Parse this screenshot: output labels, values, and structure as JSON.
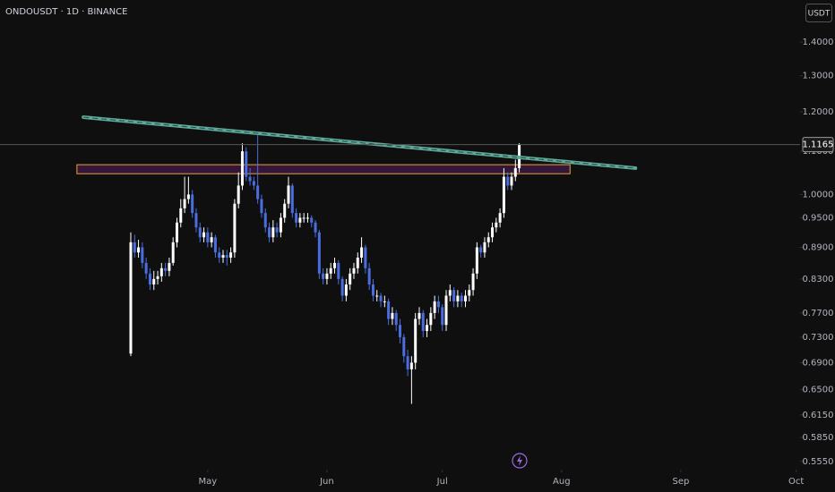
{
  "chart_data": {
    "type": "candlestick",
    "title": "ONDOUSDT · 1D · BINANCE",
    "currency": "USDT",
    "log_scale": true,
    "up_color": "#ffffff",
    "down_color": "#4a6ee0",
    "open": [
      0.704,
      0.9,
      0.88,
      0.89,
      0.86,
      0.84,
      0.82,
      0.83,
      0.835,
      0.85,
      0.845,
      0.86,
      0.9,
      0.94,
      0.97,
      0.99,
      1.0,
      0.96,
      0.93,
      0.91,
      0.92,
      0.9,
      0.91,
      0.88,
      0.87,
      0.875,
      0.87,
      0.88,
      0.98,
      1.02,
      1.1,
      1.04,
      1.03,
      1.02,
      0.99,
      0.96,
      0.93,
      0.91,
      0.93,
      0.92,
      0.95,
      0.98,
      1.02,
      0.96,
      0.94,
      0.95,
      0.95,
      0.95,
      0.94,
      0.92,
      0.84,
      0.83,
      0.84,
      0.85,
      0.86,
      0.83,
      0.8,
      0.82,
      0.84,
      0.85,
      0.87,
      0.89,
      0.85,
      0.82,
      0.8,
      0.8,
      0.79,
      0.79,
      0.76,
      0.77,
      0.75,
      0.73,
      0.7,
      0.68,
      0.69,
      0.76,
      0.77,
      0.74,
      0.75,
      0.77,
      0.79,
      0.78,
      0.75,
      0.8,
      0.81,
      0.79,
      0.8,
      0.79,
      0.8,
      0.81,
      0.84,
      0.89,
      0.88,
      0.9,
      0.91,
      0.93,
      0.94,
      0.96,
      1.04,
      1.02,
      1.04,
      1.06
    ],
    "high": [
      0.92,
      0.915,
      0.905,
      0.9,
      0.87,
      0.85,
      0.845,
      0.845,
      0.86,
      0.86,
      0.87,
      0.91,
      0.95,
      0.99,
      1.04,
      1.04,
      1.01,
      0.97,
      0.94,
      0.93,
      0.93,
      0.92,
      0.915,
      0.89,
      0.885,
      0.885,
      0.89,
      0.99,
      1.05,
      1.12,
      1.11,
      1.06,
      1.04,
      1.14,
      1.0,
      0.97,
      0.94,
      0.945,
      0.94,
      0.96,
      0.99,
      1.04,
      1.025,
      0.97,
      0.96,
      0.96,
      0.96,
      0.955,
      0.945,
      0.925,
      0.85,
      0.85,
      0.86,
      0.87,
      0.865,
      0.835,
      0.83,
      0.85,
      0.86,
      0.88,
      0.91,
      0.895,
      0.86,
      0.83,
      0.81,
      0.805,
      0.8,
      0.795,
      0.78,
      0.775,
      0.76,
      0.735,
      0.71,
      0.7,
      0.77,
      0.78,
      0.775,
      0.76,
      0.78,
      0.8,
      0.8,
      0.785,
      0.81,
      0.82,
      0.815,
      0.81,
      0.805,
      0.81,
      0.82,
      0.85,
      0.9,
      0.895,
      0.91,
      0.92,
      0.94,
      0.95,
      0.97,
      1.06,
      1.05,
      1.05,
      1.08,
      1.12
    ],
    "low": [
      0.7,
      0.87,
      0.87,
      0.85,
      0.83,
      0.81,
      0.81,
      0.82,
      0.825,
      0.835,
      0.835,
      0.855,
      0.89,
      0.93,
      0.96,
      0.98,
      0.95,
      0.92,
      0.9,
      0.9,
      0.89,
      0.89,
      0.87,
      0.86,
      0.86,
      0.855,
      0.86,
      0.87,
      0.97,
      1.01,
      1.03,
      1.02,
      1.01,
      0.98,
      0.95,
      0.92,
      0.9,
      0.9,
      0.91,
      0.91,
      0.94,
      0.97,
      0.95,
      0.93,
      0.93,
      0.94,
      0.94,
      0.93,
      0.91,
      0.83,
      0.82,
      0.82,
      0.83,
      0.84,
      0.82,
      0.79,
      0.79,
      0.81,
      0.83,
      0.84,
      0.86,
      0.84,
      0.81,
      0.79,
      0.79,
      0.78,
      0.78,
      0.75,
      0.75,
      0.74,
      0.72,
      0.69,
      0.67,
      0.63,
      0.68,
      0.75,
      0.73,
      0.73,
      0.74,
      0.76,
      0.77,
      0.74,
      0.74,
      0.79,
      0.78,
      0.78,
      0.78,
      0.78,
      0.79,
      0.8,
      0.83,
      0.87,
      0.87,
      0.89,
      0.9,
      0.92,
      0.93,
      0.95,
      1.01,
      1.01,
      1.03,
      1.05
    ],
    "close": [
      0.9,
      0.88,
      0.89,
      0.86,
      0.84,
      0.82,
      0.83,
      0.835,
      0.85,
      0.845,
      0.86,
      0.9,
      0.94,
      0.97,
      0.99,
      1.0,
      0.96,
      0.93,
      0.91,
      0.92,
      0.9,
      0.91,
      0.88,
      0.87,
      0.875,
      0.87,
      0.88,
      0.98,
      1.02,
      1.1,
      1.04,
      1.03,
      1.02,
      0.99,
      0.96,
      0.93,
      0.91,
      0.93,
      0.92,
      0.95,
      0.98,
      1.02,
      0.96,
      0.94,
      0.95,
      0.95,
      0.95,
      0.94,
      0.92,
      0.84,
      0.83,
      0.84,
      0.85,
      0.86,
      0.83,
      0.8,
      0.82,
      0.84,
      0.85,
      0.87,
      0.89,
      0.85,
      0.82,
      0.8,
      0.8,
      0.79,
      0.79,
      0.76,
      0.77,
      0.75,
      0.73,
      0.7,
      0.68,
      0.69,
      0.76,
      0.77,
      0.74,
      0.75,
      0.77,
      0.79,
      0.78,
      0.75,
      0.8,
      0.81,
      0.79,
      0.8,
      0.79,
      0.8,
      0.81,
      0.84,
      0.89,
      0.88,
      0.9,
      0.91,
      0.93,
      0.94,
      0.96,
      1.04,
      1.02,
      1.04,
      1.06,
      1.1165
    ],
    "last_price": 1.1165,
    "xlim": [
      -34,
      174
    ],
    "xticks": [
      {
        "value": 20,
        "label": "May"
      },
      {
        "value": 51,
        "label": "Jun"
      },
      {
        "value": 81,
        "label": "Jul"
      },
      {
        "value": 112,
        "label": "Aug"
      },
      {
        "value": 143,
        "label": "Sep"
      },
      {
        "value": 173,
        "label": "Oct"
      }
    ],
    "ylim": [
      0.545,
      1.536
    ],
    "yticks": [
      {
        "value": 1.4,
        "label": "1.4000"
      },
      {
        "value": 1.3,
        "label": "1.3000"
      },
      {
        "value": 1.2,
        "label": "1.2000"
      },
      {
        "value": 1.1,
        "label": "1.1000"
      },
      {
        "value": 1.0,
        "label": "1.0000"
      },
      {
        "value": 0.95,
        "label": "0.9500"
      },
      {
        "value": 0.89,
        "label": "0.8900"
      },
      {
        "value": 0.83,
        "label": "0.8300"
      },
      {
        "value": 0.77,
        "label": "0.7700"
      },
      {
        "value": 0.73,
        "label": "0.7300"
      },
      {
        "value": 0.69,
        "label": "0.6900"
      },
      {
        "value": 0.65,
        "label": "0.6500"
      },
      {
        "value": 0.615,
        "label": "0.6150"
      },
      {
        "value": 0.585,
        "label": "0.5850"
      },
      {
        "value": 0.555,
        "label": "0.5550"
      }
    ],
    "trendline": {
      "x": [
        -12.3,
        131.2
      ],
      "y": [
        1.186,
        1.06
      ],
      "color": "#5fa89a"
    },
    "zone": {
      "x": [
        -14,
        114.2
      ],
      "y": [
        1.047,
        1.068
      ],
      "color": "#f0a030"
    }
  }
}
